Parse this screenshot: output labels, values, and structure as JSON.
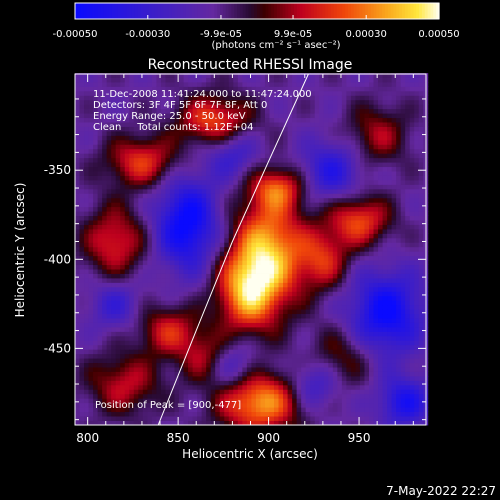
{
  "chart_data": {
    "type": "heatmap",
    "title": "Reconstructed RHESSI Image",
    "xlabel": "Heliocentric X (arcsec)",
    "ylabel": "Heliocentric Y (arcsec)",
    "x_ticks": [
      "800",
      "850",
      "900",
      "950"
    ],
    "y_ticks": [
      "-350",
      "-400",
      "-450"
    ],
    "x_tick_values": [
      800,
      850,
      900,
      950
    ],
    "y_tick_values": [
      -350,
      -400,
      -450
    ],
    "xlim": [
      793,
      987
    ],
    "ylim": [
      -493,
      -296
    ],
    "colorbar": {
      "ticks": [
        "-0.00050",
        "-0.00030",
        "-9.9e-05",
        "9.9e-05",
        "0.00030",
        "0.00050"
      ],
      "tick_values": [
        -0.0005,
        -0.0003,
        -9.9e-05,
        9.9e-05,
        0.0003,
        0.0005
      ],
      "range": [
        -0.0005,
        0.0005
      ],
      "units": "(photons cm⁻² s⁻¹ asec⁻²)"
    },
    "annotations": [
      "11-Dec-2008 11:41:24.000 to 11:47:24.000",
      "Detectors: 3F 4F 5F 6F 7F 8F, Att 0",
      "Energy Range: 25.0 - 50.0 keV",
      "Clean     Total counts: 1.12E+04"
    ],
    "peak_label": "Position of Peak = [900,-477]",
    "peak": [
      900,
      -477
    ],
    "limb_curve": [
      [
        839,
        -493
      ],
      [
        860,
        -440
      ],
      [
        880,
        -390
      ],
      [
        900,
        -345
      ],
      [
        922,
        -296
      ]
    ],
    "blobs": [
      {
        "x": 900,
        "y": -395,
        "v": 0.00048,
        "sx": 14,
        "sy": 22
      },
      {
        "x": 888,
        "y": -418,
        "v": 0.00042,
        "sx": 12,
        "sy": 16
      },
      {
        "x": 895,
        "y": -480,
        "v": 0.00047,
        "sx": 16,
        "sy": 12
      },
      {
        "x": 950,
        "y": -378,
        "v": 0.00035,
        "sx": 12,
        "sy": 10
      },
      {
        "x": 930,
        "y": -400,
        "v": 0.00028,
        "sx": 10,
        "sy": 12
      },
      {
        "x": 830,
        "y": -345,
        "v": 0.00032,
        "sx": 14,
        "sy": 10
      },
      {
        "x": 815,
        "y": -390,
        "v": 0.0003,
        "sx": 12,
        "sy": 14
      },
      {
        "x": 870,
        "y": -322,
        "v": 0.00036,
        "sx": 14,
        "sy": 10
      },
      {
        "x": 845,
        "y": -440,
        "v": 0.00028,
        "sx": 12,
        "sy": 10
      },
      {
        "x": 820,
        "y": -470,
        "v": 0.00025,
        "sx": 14,
        "sy": 12
      },
      {
        "x": 960,
        "y": -330,
        "v": 0.00022,
        "sx": 12,
        "sy": 12
      },
      {
        "x": 940,
        "y": -455,
        "v": 0.00018,
        "sx": 12,
        "sy": 12
      },
      {
        "x": 905,
        "y": -360,
        "v": 0.0003,
        "sx": 10,
        "sy": 8
      },
      {
        "x": 865,
        "y": -455,
        "v": 0.00022,
        "sx": 10,
        "sy": 10
      },
      {
        "x": 855,
        "y": -380,
        "v": -0.0004,
        "sx": 12,
        "sy": 18
      },
      {
        "x": 880,
        "y": -340,
        "v": -0.0002,
        "sx": 10,
        "sy": 10
      },
      {
        "x": 965,
        "y": -430,
        "v": -0.00038,
        "sx": 14,
        "sy": 16
      },
      {
        "x": 935,
        "y": -350,
        "v": -0.00025,
        "sx": 12,
        "sy": 12
      },
      {
        "x": 880,
        "y": -460,
        "v": -0.0002,
        "sx": 10,
        "sy": 10
      },
      {
        "x": 975,
        "y": -480,
        "v": -0.0003,
        "sx": 10,
        "sy": 10
      },
      {
        "x": 925,
        "y": -470,
        "v": -0.00022,
        "sx": 10,
        "sy": 10
      },
      {
        "x": 815,
        "y": -425,
        "v": -0.00018,
        "sx": 10,
        "sy": 10
      }
    ]
  },
  "footer": {
    "date": "7-May-2022 22:27"
  },
  "colors": {
    "background": "#000000",
    "text": "#ffffff"
  }
}
